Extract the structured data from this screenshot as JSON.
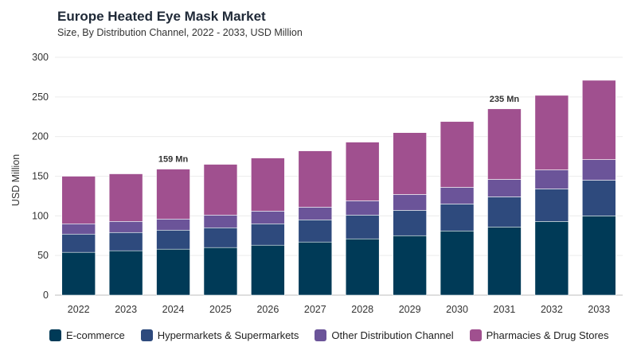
{
  "header": {
    "title": "Europe Heated Eye Mask Market",
    "subtitle": "Size, By Distribution Channel, 2022 - 2033, USD Million"
  },
  "chart_data": {
    "type": "bar",
    "stacked": true,
    "categories": [
      "2022",
      "2023",
      "2024",
      "2025",
      "2026",
      "2027",
      "2028",
      "2029",
      "2030",
      "2031",
      "2032",
      "2033"
    ],
    "ylabel": "USD Million",
    "xlabel": "",
    "ylim": [
      0,
      300
    ],
    "yticks": [
      0,
      50,
      100,
      150,
      200,
      250,
      300
    ],
    "grid": true,
    "legend": "bottom",
    "series": [
      {
        "name": "E-commerce",
        "color": "#003a57",
        "values": [
          54,
          56,
          58,
          60,
          63,
          67,
          71,
          75,
          81,
          86,
          93,
          100
        ]
      },
      {
        "name": "Hypermarkets & Supermarkets",
        "color": "#2e4a7d",
        "values": [
          23,
          23,
          24,
          25,
          27,
          28,
          30,
          32,
          34,
          38,
          41,
          45
        ]
      },
      {
        "name": "Other Distribution Channel",
        "color": "#6b5499",
        "values": [
          13,
          14,
          14,
          16,
          16,
          16,
          18,
          20,
          21,
          22,
          24,
          26
        ]
      },
      {
        "name": "Pharmacies & Drug Stores",
        "color": "#a0508f",
        "values": [
          60,
          60,
          63,
          64,
          67,
          71,
          74,
          78,
          83,
          89,
          94,
          100
        ]
      }
    ],
    "annotations": [
      {
        "category": "2024",
        "text": "159 Mn"
      },
      {
        "category": "2031",
        "text": "235 Mn"
      }
    ]
  }
}
